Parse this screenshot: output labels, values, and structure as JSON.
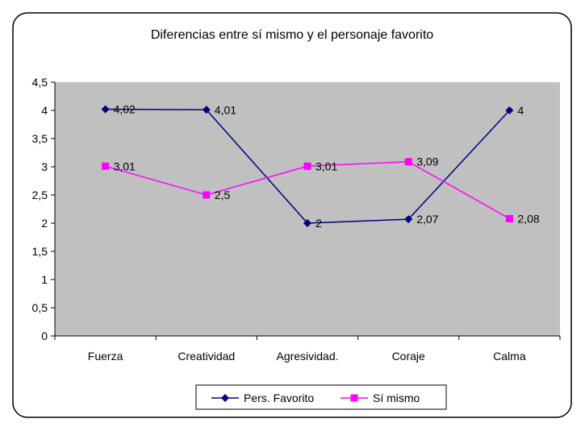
{
  "chart_data": {
    "type": "line",
    "title": "Diferencias entre sí mismo y el personaje favorito",
    "xlabel": "",
    "ylabel": "",
    "categories": [
      "Fuerza",
      "Creatividad",
      "Agresividad.",
      "Coraje",
      "Calma"
    ],
    "ylim": [
      0,
      4.5
    ],
    "yticks": [
      0,
      0.5,
      1,
      1.5,
      2,
      2.5,
      3,
      3.5,
      4,
      4.5
    ],
    "ytick_labels": [
      "0",
      "0,5",
      "1",
      "1,5",
      "2",
      "2,5",
      "3",
      "3,5",
      "4",
      "4,5"
    ],
    "grid": false,
    "legend_position": "bottom",
    "plot_background": "#c0c0c0",
    "series": [
      {
        "name": "Pers. Favorito",
        "color": "#000080",
        "marker": "diamond",
        "values": [
          4.02,
          4.01,
          2,
          2.07,
          4
        ],
        "labels": [
          "4,02",
          "4,01",
          "2",
          "2,07",
          "4"
        ]
      },
      {
        "name": "Sí mismo",
        "color": "#ff00ff",
        "marker": "square",
        "values": [
          3.01,
          2.5,
          3.01,
          3.09,
          2.08
        ],
        "labels": [
          "3,01",
          "2,5",
          "3,01",
          "3,09",
          "2,08"
        ]
      }
    ]
  }
}
